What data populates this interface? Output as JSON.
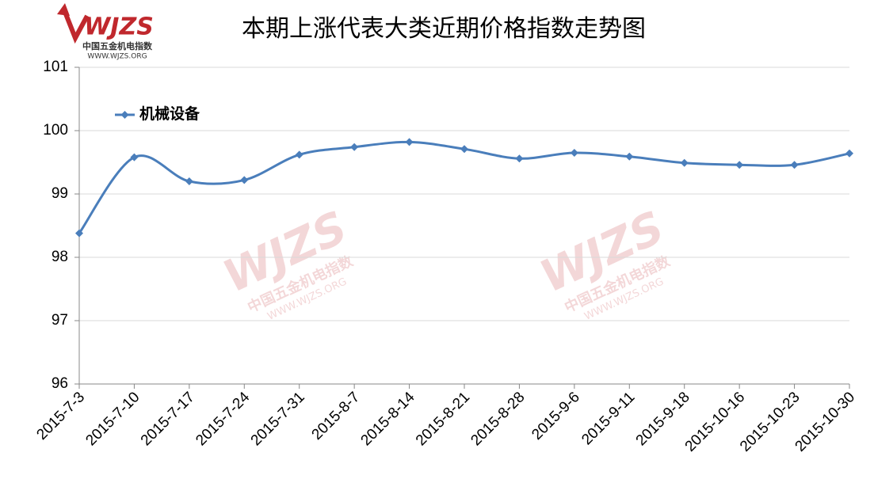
{
  "chart_data": {
    "type": "line",
    "title": "本期上涨代表大类近期价格指数走势图",
    "logo": {
      "mark": "WJZS",
      "name": "中国五金机电指数",
      "site": "WWW.WJZS.ORG"
    },
    "categories": [
      "2015-7-3",
      "2015-7-10",
      "2015-7-17",
      "2015-7-24",
      "2015-7-31",
      "2015-8-7",
      "2015-8-14",
      "2015-8-21",
      "2015-8-28",
      "2015-9-6",
      "2015-9-11",
      "2015-9-18",
      "2015-10-16",
      "2015-10-23",
      "2015-10-30"
    ],
    "series": [
      {
        "name": "机械设备",
        "color": "#4a7ebb",
        "values": [
          98.38,
          99.58,
          99.2,
          99.22,
          99.62,
          99.74,
          99.82,
          99.71,
          99.56,
          99.65,
          99.59,
          99.49,
          99.46,
          99.46,
          99.64
        ]
      }
    ],
    "ylim": [
      96,
      101
    ],
    "yticks": [
      96,
      97,
      98,
      99,
      100,
      101
    ],
    "grid": true,
    "legend": "top-left"
  }
}
